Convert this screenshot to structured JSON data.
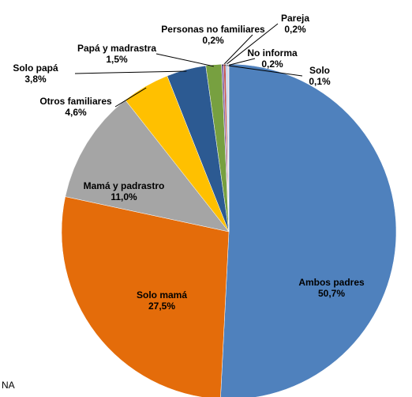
{
  "chart_data": {
    "type": "pie",
    "categories": [
      "Ambos padres",
      "Solo mamá",
      "Mamá y padrastro",
      "Otros familiares",
      "Solo papá",
      "Papá y madrastra",
      "Personas no familiares",
      "Pareja",
      "No informa",
      "Solo"
    ],
    "values": [
      50.7,
      27.5,
      11.0,
      4.6,
      3.8,
      1.5,
      0.2,
      0.2,
      0.2,
      0.1
    ],
    "value_labels": [
      "50,7%",
      "27,5%",
      "11,0%",
      "4,6%",
      "3,8%",
      "1,5%",
      "0,2%",
      "0,2%",
      "0,2%",
      "0,1%"
    ],
    "colors": [
      "#4f81bd",
      "#e46c0a",
      "#a5a5a5",
      "#ffc000",
      "#2c5a92",
      "#77a040",
      "#8064a2",
      "#c0504d",
      "#b7cde6",
      "#f2dcdb"
    ],
    "fragments": [
      "NA"
    ]
  }
}
